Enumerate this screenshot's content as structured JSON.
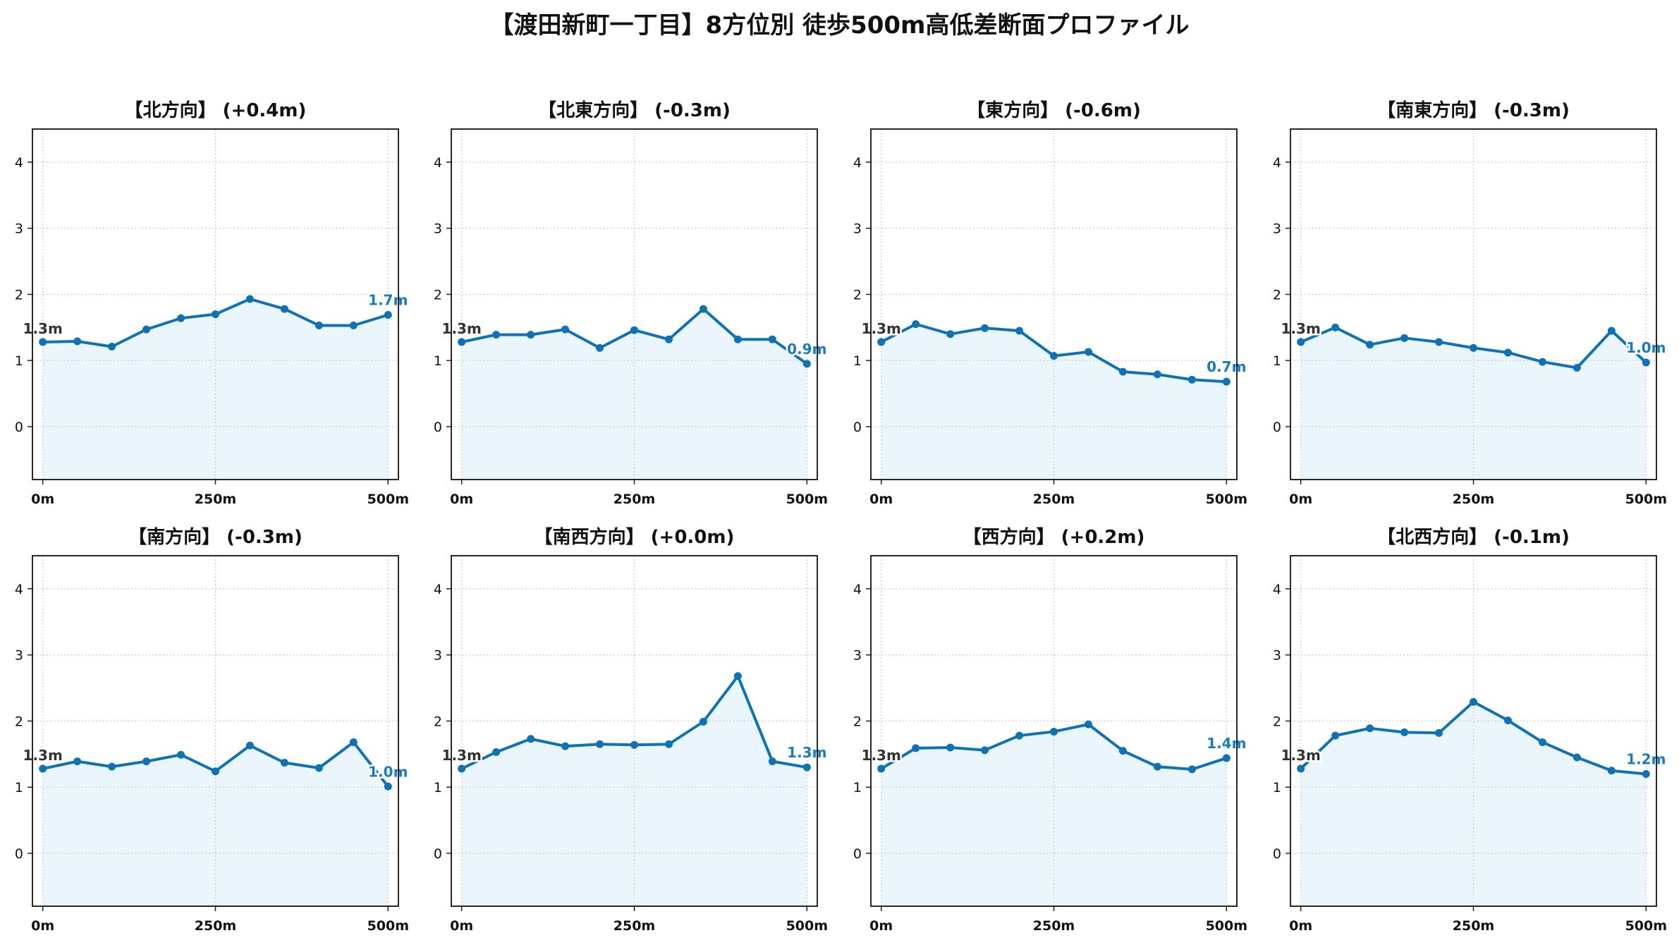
{
  "title": "【渡田新町一丁目】8方位別 徒歩500m高低差断面プロファイル",
  "colors": {
    "line": "#0e72b5",
    "fill": "#eaf6fb",
    "grid": "#c9c9c9",
    "start_label": "#333333",
    "end_label": "#1a7bbf"
  },
  "chart_data": [
    {
      "type": "area",
      "title": "【北方向】 (+0.4m)",
      "x": [
        0,
        50,
        100,
        150,
        200,
        250,
        300,
        350,
        400,
        450,
        500
      ],
      "values": [
        1.28,
        1.29,
        1.21,
        1.47,
        1.64,
        1.7,
        1.93,
        1.78,
        1.53,
        1.53,
        1.69
      ],
      "xticks": [
        0,
        250,
        500
      ],
      "xtick_labels": [
        "0m",
        "250m",
        "500m"
      ],
      "yticks": [
        0,
        1,
        2,
        3,
        4
      ],
      "ylim": [
        -0.8,
        4.5
      ],
      "xlim": [
        -15,
        515
      ],
      "start_label": "1.3m",
      "end_label": "1.7m",
      "grid": true
    },
    {
      "type": "area",
      "title": "【北東方向】 (-0.3m)",
      "x": [
        0,
        50,
        100,
        150,
        200,
        250,
        300,
        350,
        400,
        450,
        500
      ],
      "values": [
        1.28,
        1.39,
        1.39,
        1.47,
        1.19,
        1.46,
        1.32,
        1.78,
        1.32,
        1.32,
        0.95
      ],
      "xticks": [
        0,
        250,
        500
      ],
      "xtick_labels": [
        "0m",
        "250m",
        "500m"
      ],
      "yticks": [
        0,
        1,
        2,
        3,
        4
      ],
      "ylim": [
        -0.8,
        4.5
      ],
      "xlim": [
        -15,
        515
      ],
      "start_label": "1.3m",
      "end_label": "0.9m",
      "grid": true
    },
    {
      "type": "area",
      "title": "【東方向】 (-0.6m)",
      "x": [
        0,
        50,
        100,
        150,
        200,
        250,
        300,
        350,
        400,
        450,
        500
      ],
      "values": [
        1.28,
        1.55,
        1.4,
        1.49,
        1.45,
        1.07,
        1.13,
        0.83,
        0.79,
        0.71,
        0.68
      ],
      "xticks": [
        0,
        250,
        500
      ],
      "xtick_labels": [
        "0m",
        "250m",
        "500m"
      ],
      "yticks": [
        0,
        1,
        2,
        3,
        4
      ],
      "ylim": [
        -0.8,
        4.5
      ],
      "xlim": [
        -15,
        515
      ],
      "start_label": "1.3m",
      "end_label": "0.7m",
      "grid": true
    },
    {
      "type": "area",
      "title": "【南東方向】 (-0.3m)",
      "x": [
        0,
        50,
        100,
        150,
        200,
        250,
        300,
        350,
        400,
        450,
        500
      ],
      "values": [
        1.28,
        1.5,
        1.24,
        1.34,
        1.28,
        1.19,
        1.12,
        0.98,
        0.89,
        1.45,
        0.97
      ],
      "xticks": [
        0,
        250,
        500
      ],
      "xtick_labels": [
        "0m",
        "250m",
        "500m"
      ],
      "yticks": [
        0,
        1,
        2,
        3,
        4
      ],
      "ylim": [
        -0.8,
        4.5
      ],
      "xlim": [
        -15,
        515
      ],
      "start_label": "1.3m",
      "end_label": "1.0m",
      "grid": true
    },
    {
      "type": "area",
      "title": "【南方向】 (-0.3m)",
      "x": [
        0,
        50,
        100,
        150,
        200,
        250,
        300,
        350,
        400,
        450,
        500
      ],
      "values": [
        1.28,
        1.39,
        1.31,
        1.39,
        1.49,
        1.24,
        1.63,
        1.37,
        1.29,
        1.68,
        1.01
      ],
      "xticks": [
        0,
        250,
        500
      ],
      "xtick_labels": [
        "0m",
        "250m",
        "500m"
      ],
      "yticks": [
        0,
        1,
        2,
        3,
        4
      ],
      "ylim": [
        -0.8,
        4.5
      ],
      "xlim": [
        -15,
        515
      ],
      "start_label": "1.3m",
      "end_label": "1.0m",
      "grid": true
    },
    {
      "type": "area",
      "title": "【南西方向】 (+0.0m)",
      "x": [
        0,
        50,
        100,
        150,
        200,
        250,
        300,
        350,
        400,
        450,
        500
      ],
      "values": [
        1.28,
        1.53,
        1.73,
        1.62,
        1.65,
        1.64,
        1.65,
        1.99,
        2.68,
        1.39,
        1.3
      ],
      "xticks": [
        0,
        250,
        500
      ],
      "xtick_labels": [
        "0m",
        "250m",
        "500m"
      ],
      "yticks": [
        0,
        1,
        2,
        3,
        4
      ],
      "ylim": [
        -0.8,
        4.5
      ],
      "xlim": [
        -15,
        515
      ],
      "start_label": "1.3m",
      "end_label": "1.3m",
      "grid": true
    },
    {
      "type": "area",
      "title": "【西方向】 (+0.2m)",
      "x": [
        0,
        50,
        100,
        150,
        200,
        250,
        300,
        350,
        400,
        450,
        500
      ],
      "values": [
        1.28,
        1.59,
        1.6,
        1.56,
        1.78,
        1.84,
        1.95,
        1.55,
        1.31,
        1.27,
        1.44
      ],
      "xticks": [
        0,
        250,
        500
      ],
      "xtick_labels": [
        "0m",
        "250m",
        "500m"
      ],
      "yticks": [
        0,
        1,
        2,
        3,
        4
      ],
      "ylim": [
        -0.8,
        4.5
      ],
      "xlim": [
        -15,
        515
      ],
      "start_label": "1.3m",
      "end_label": "1.4m",
      "grid": true
    },
    {
      "type": "area",
      "title": "【北西方向】 (-0.1m)",
      "x": [
        0,
        50,
        100,
        150,
        200,
        250,
        300,
        350,
        400,
        450,
        500
      ],
      "values": [
        1.28,
        1.78,
        1.89,
        1.83,
        1.82,
        2.29,
        2.01,
        1.68,
        1.45,
        1.25,
        1.2
      ],
      "xticks": [
        0,
        250,
        500
      ],
      "xtick_labels": [
        "0m",
        "250m",
        "500m"
      ],
      "yticks": [
        0,
        1,
        2,
        3,
        4
      ],
      "ylim": [
        -0.8,
        4.5
      ],
      "xlim": [
        -15,
        515
      ],
      "start_label": "1.3m",
      "end_label": "1.2m",
      "grid": true
    }
  ]
}
